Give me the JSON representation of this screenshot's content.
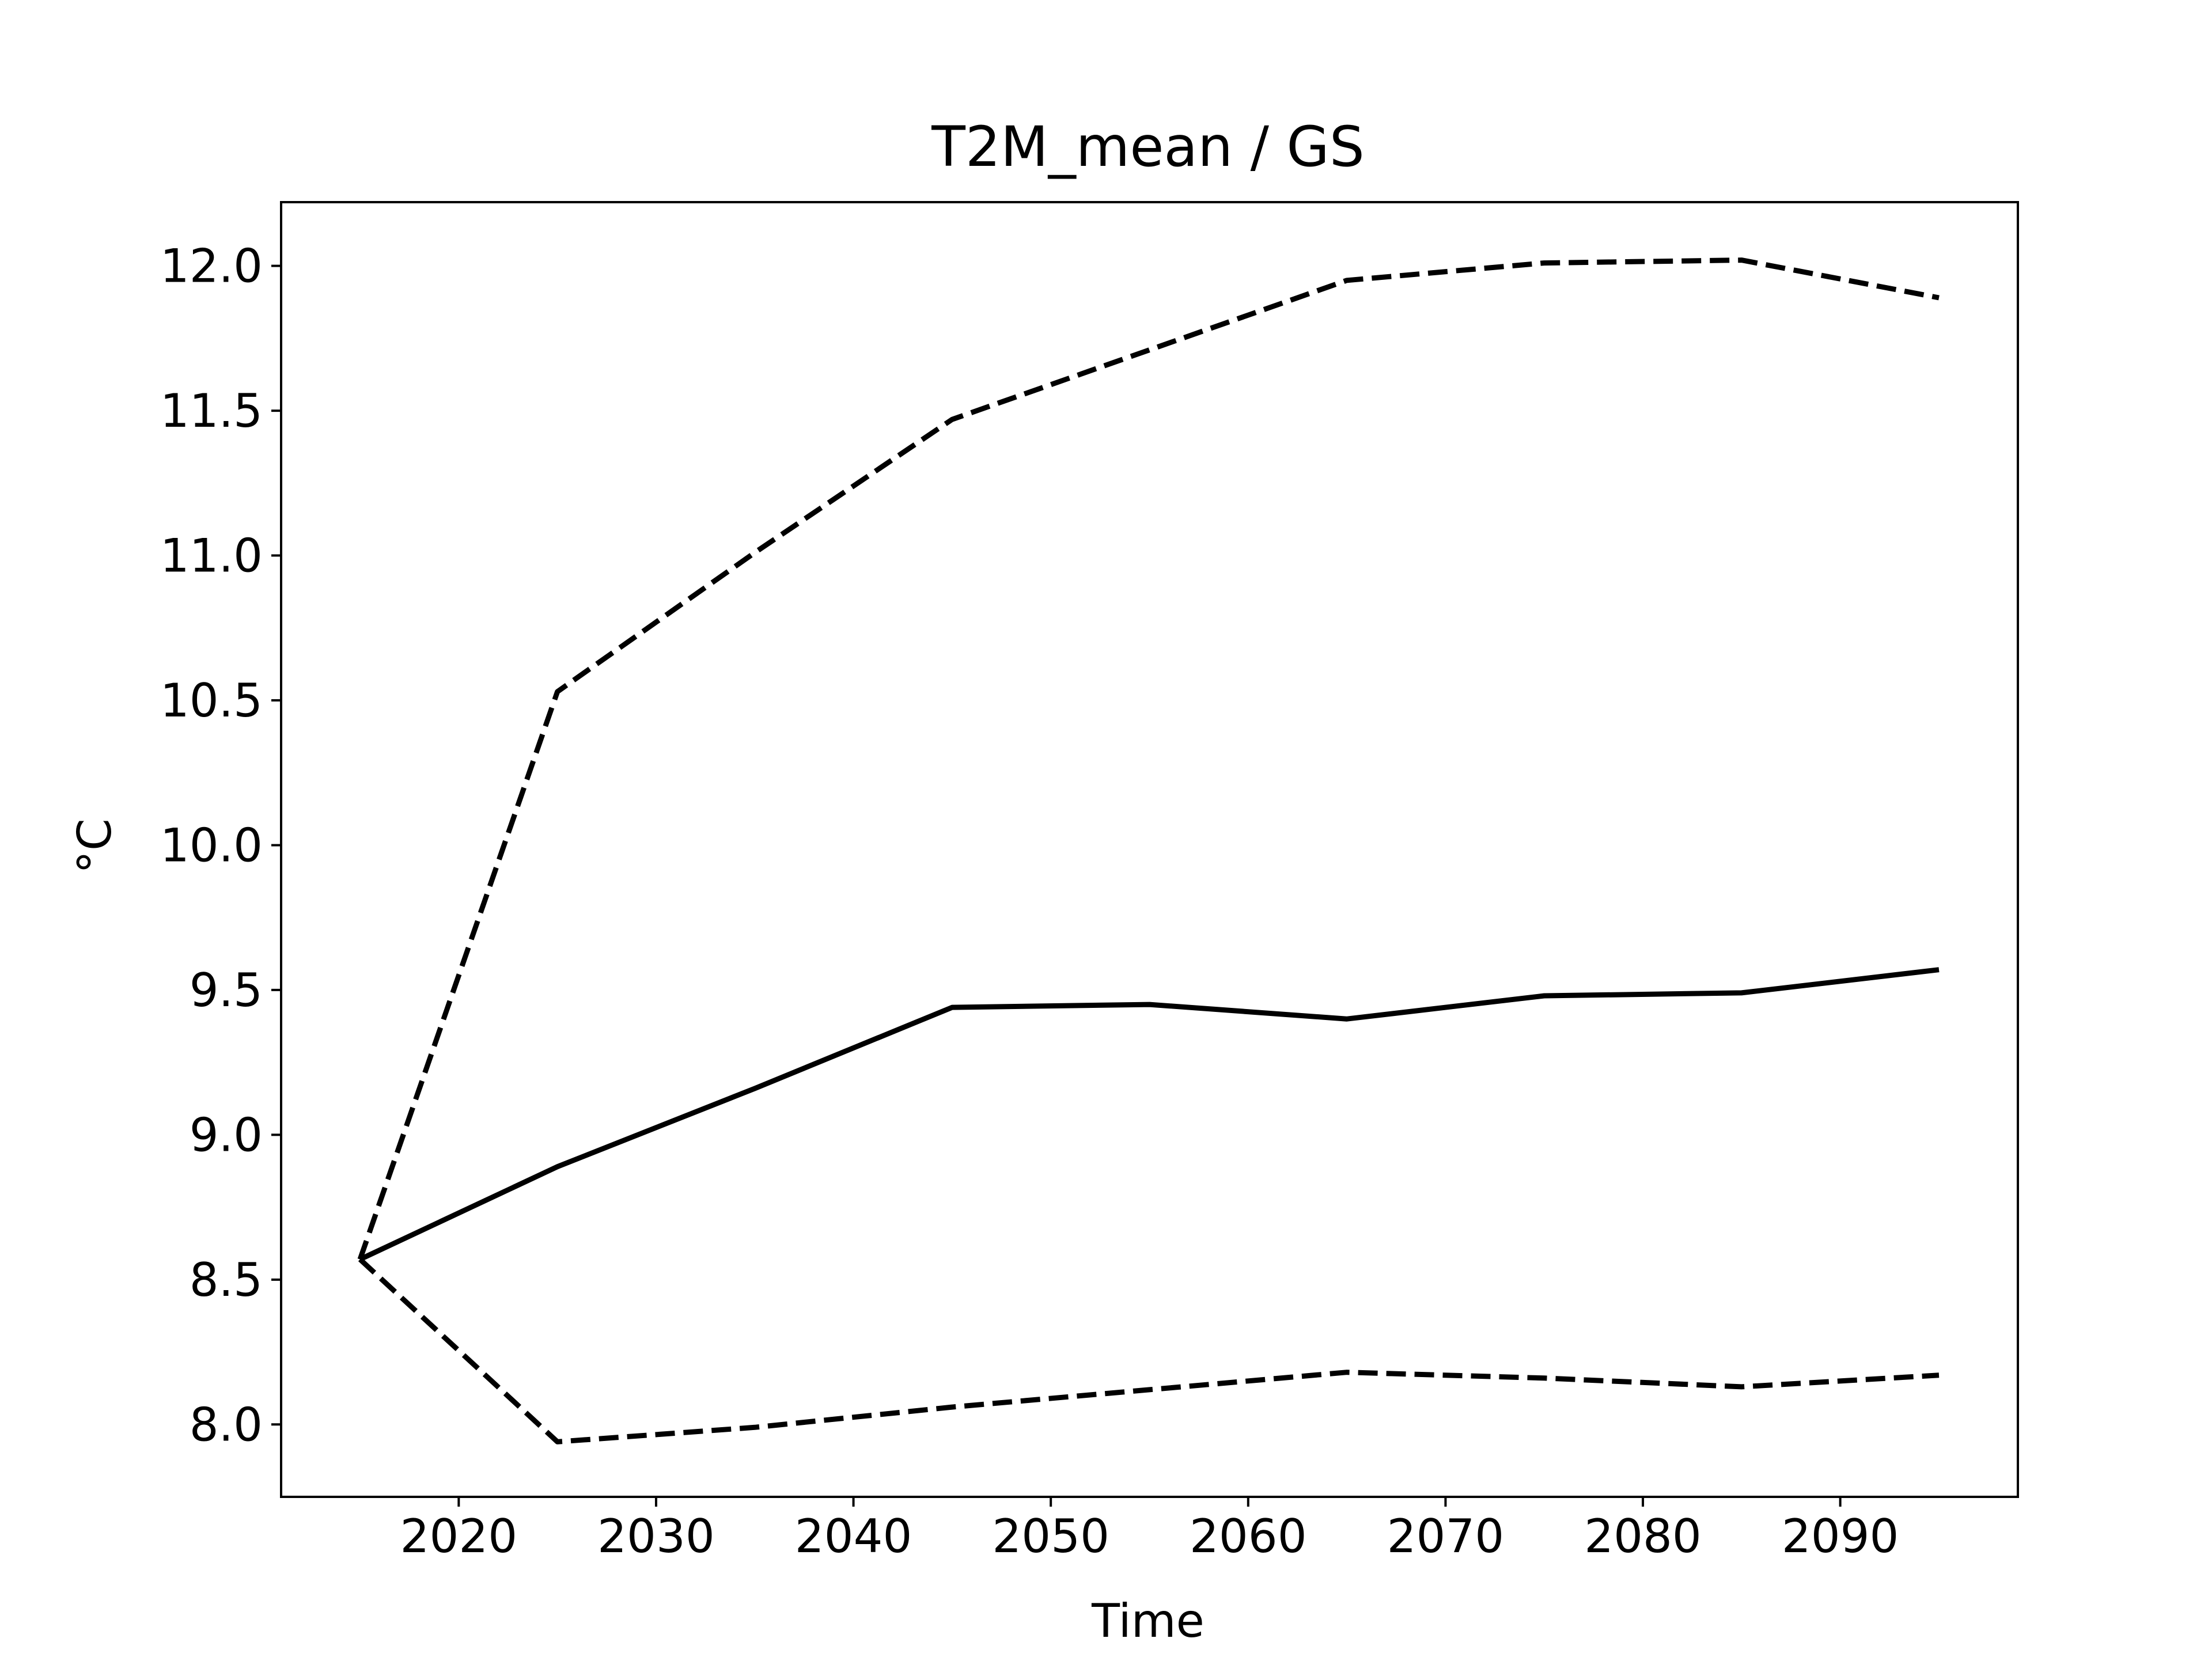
{
  "chart_data": {
    "type": "line",
    "title": "T2M_mean / GS",
    "xlabel": "Time",
    "ylabel": "°C",
    "xlim": [
      2011,
      2099
    ],
    "ylim": [
      7.75,
      12.22
    ],
    "x_ticks": [
      2020,
      2030,
      2040,
      2050,
      2060,
      2070,
      2080,
      2090
    ],
    "y_ticks": [
      8.0,
      8.5,
      9.0,
      9.5,
      10.0,
      10.5,
      11.0,
      11.5,
      12.0
    ],
    "grid": false,
    "legend": "none",
    "x": [
      2015,
      2025,
      2035,
      2045,
      2055,
      2065,
      2075,
      2085,
      2095
    ],
    "series": [
      {
        "style": "solid",
        "color": "#000000",
        "values": [
          8.57,
          8.89,
          9.16,
          9.44,
          9.45,
          9.4,
          9.48,
          9.49,
          9.57
        ]
      },
      {
        "style": "dashed",
        "color": "#000000",
        "values": [
          8.57,
          10.53,
          11.01,
          11.47,
          11.71,
          11.95,
          12.01,
          12.02,
          11.89
        ]
      },
      {
        "style": "dashed",
        "color": "#000000",
        "values": [
          8.57,
          7.94,
          7.99,
          8.06,
          8.12,
          8.18,
          8.16,
          8.13,
          8.17
        ]
      }
    ]
  }
}
